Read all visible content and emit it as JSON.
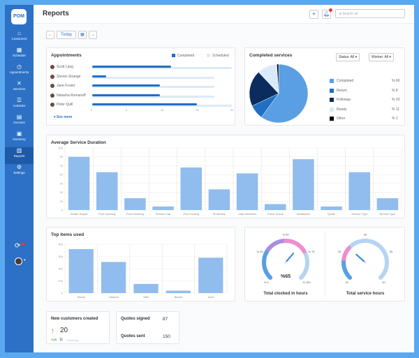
{
  "sidebar": {
    "logo": "POM",
    "items": [
      {
        "label": "Customers",
        "icon": "home-icon",
        "glyph": "⌂"
      },
      {
        "label": "Schedule",
        "icon": "calendar-icon",
        "glyph": "▦"
      },
      {
        "label": "Appointments",
        "icon": "clock-icon",
        "glyph": "◷"
      },
      {
        "label": "Services",
        "icon": "tools-icon",
        "glyph": "✕"
      },
      {
        "label": "Activities",
        "icon": "list-icon",
        "glyph": "☰"
      },
      {
        "label": "Invoices",
        "icon": "invoice-icon",
        "glyph": "▤"
      },
      {
        "label": "Inventory",
        "icon": "boxes-icon",
        "glyph": "▣"
      },
      {
        "label": "Reports",
        "icon": "bar-chart-icon",
        "glyph": "▥",
        "active": true
      },
      {
        "label": "Settings",
        "icon": "gear-icon",
        "glyph": "⚙"
      }
    ]
  },
  "header": {
    "title": "Reports",
    "search_placeholder": "Search all"
  },
  "datebar": {
    "today": "Today"
  },
  "appointments": {
    "title": "Appointments",
    "legend": [
      "Completed",
      "Scheduled"
    ],
    "see_more": "See more",
    "people": [
      "Scott Lang",
      "Steven Strange",
      "Jane Foster",
      "Natasha Romanoff",
      "Peter Quill"
    ],
    "completed": [
      11.3,
      2,
      9.7,
      9.7,
      15
    ],
    "scheduled": [
      20,
      17.5,
      17.5,
      17.5,
      20
    ],
    "ticks": [
      "0",
      "5",
      "10",
      "15",
      "20"
    ],
    "colors": {
      "completed": "#1f6fc5",
      "scheduled": "#dbeafa"
    }
  },
  "completed_services": {
    "title": "Completed services",
    "status_filter": "Status: All",
    "worker_filter": "Worker: All",
    "slices": [
      {
        "label": "Completed",
        "pct": "% 60",
        "value": 60,
        "color": "#5a9fe3"
      },
      {
        "label": "Return",
        "pct": "% 8",
        "value": 8,
        "color": "#1f6fc5"
      },
      {
        "label": "Followup",
        "pct": "% 20",
        "value": 20,
        "color": "#0b2c5c"
      },
      {
        "label": "Ready",
        "pct": "% 11",
        "value": 11,
        "color": "#dbeafa"
      },
      {
        "label": "Other",
        "pct": "% 1",
        "value": 1,
        "color": "#000000"
      }
    ]
  },
  "chart_data": [
    {
      "type": "bar",
      "title": "Average Service Duration",
      "categories": [
        "Heater Repair",
        "Pool Opening",
        "Pool Cleaning",
        "Service Call",
        "Pool Closing",
        "Bi-Weekly",
        "Leak Detection",
        "Chem Check",
        "Installation",
        "Quote",
        "Service Type",
        "Service Type"
      ],
      "values": [
        90,
        64,
        20,
        6,
        72,
        35,
        62,
        10,
        86,
        6,
        64,
        20
      ],
      "ylim": [
        0,
        105
      ],
      "yticks": [
        "0",
        "15",
        "30",
        "45",
        "60",
        "75",
        "90",
        "105"
      ],
      "grid": true
    },
    {
      "type": "bar",
      "title": "Top items used",
      "categories": [
        "Shock",
        "Calcium",
        "Tabs",
        "Bicarb",
        "Acid"
      ],
      "values": [
        360,
        255,
        75,
        20,
        290
      ],
      "ylim": [
        0,
        400
      ],
      "yticks": [
        "0",
        "100",
        "200",
        "300",
        "400"
      ],
      "grid": true
    }
  ],
  "gauges": [
    {
      "label": "Total clocked in hours",
      "value_text": "%65",
      "value": 65,
      "min": 0,
      "max": 100,
      "ticks": [
        "% 0",
        "% 25",
        "% 50",
        "% 75",
        "% 100"
      ]
    },
    {
      "label": "Total service hours",
      "value": 23,
      "min": 15,
      "max": 40,
      "ticks": [
        "15",
        "25",
        "30",
        "35",
        "40"
      ]
    }
  ],
  "new_customers": {
    "title": "New customers created",
    "value": "20",
    "change": "%45",
    "previous": "11",
    "previous_label": "Yesterday"
  },
  "quotes": {
    "signed_label": "Quotes signed",
    "signed": "87",
    "sent_label": "Quotes sent",
    "sent": "150"
  }
}
